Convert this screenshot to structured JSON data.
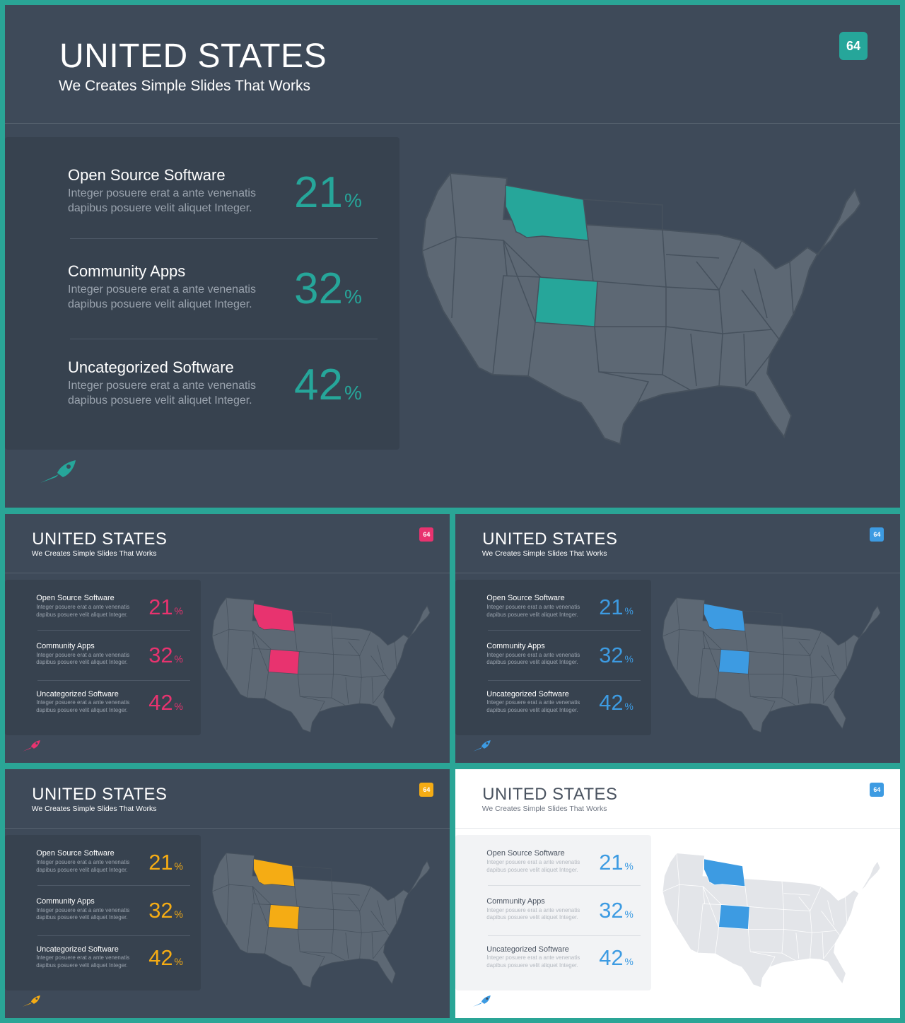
{
  "slides": [
    {
      "id": "main",
      "theme": "dark",
      "title": "UNITED STATES",
      "subtitle": "We Creates Simple Slides That Works",
      "badge": "64",
      "accent": "#26a69a",
      "map_icon": "us-map-icon",
      "highlighted_states": [
        "Montana",
        "Colorado"
      ],
      "stats": [
        {
          "title": "Open Source Software",
          "desc": "Integer posuere erat a ante venenatis dapibus posuere velit aliquet Integer.",
          "value": "21",
          "unit": "%"
        },
        {
          "title": "Community Apps",
          "desc": "Integer posuere erat a ante venenatis dapibus posuere velit aliquet Integer.",
          "value": "32",
          "unit": "%"
        },
        {
          "title": "Uncategorized Software",
          "desc": "Integer posuere erat a ante venenatis dapibus posuere velit aliquet Integer.",
          "value": "42",
          "unit": "%"
        }
      ]
    },
    {
      "id": "pink",
      "theme": "dark",
      "title": "UNITED STATES",
      "subtitle": "We Creates Simple Slides That Works",
      "badge": "64",
      "accent": "#e8336f",
      "map_icon": "us-map-icon",
      "highlighted_states": [
        "Montana",
        "Colorado"
      ],
      "stats": [
        {
          "title": "Open Source Software",
          "desc": "Integer posuere erat a ante venenatis dapibus posuere velit aliquet Integer.",
          "value": "21",
          "unit": "%"
        },
        {
          "title": "Community Apps",
          "desc": "Integer posuere erat a ante venenatis dapibus posuere velit aliquet Integer.",
          "value": "32",
          "unit": "%"
        },
        {
          "title": "Uncategorized Software",
          "desc": "Integer posuere erat a ante venenatis dapibus posuere velit aliquet Integer.",
          "value": "42",
          "unit": "%"
        }
      ]
    },
    {
      "id": "blue",
      "theme": "dark",
      "title": "UNITED STATES",
      "subtitle": "We Creates Simple Slides That Works",
      "badge": "64",
      "accent": "#3d9be2",
      "map_icon": "us-map-icon",
      "highlighted_states": [
        "Montana",
        "Colorado"
      ],
      "stats": [
        {
          "title": "Open Source Software",
          "desc": "Integer posuere erat a ante venenatis dapibus posuere velit aliquet Integer.",
          "value": "21",
          "unit": "%"
        },
        {
          "title": "Community Apps",
          "desc": "Integer posuere erat a ante venenatis dapibus posuere velit aliquet Integer.",
          "value": "32",
          "unit": "%"
        },
        {
          "title": "Uncategorized Software",
          "desc": "Integer posuere erat a ante venenatis dapibus posuere velit aliquet Integer.",
          "value": "42",
          "unit": "%"
        }
      ]
    },
    {
      "id": "orange",
      "theme": "dark",
      "title": "UNITED STATES",
      "subtitle": "We Creates Simple Slides That Works",
      "badge": "64",
      "accent": "#f5ac14",
      "map_icon": "us-map-icon",
      "highlighted_states": [
        "Montana",
        "Colorado"
      ],
      "stats": [
        {
          "title": "Open Source Software",
          "desc": "Integer posuere erat a ante venenatis dapibus posuere velit aliquet Integer.",
          "value": "21",
          "unit": "%"
        },
        {
          "title": "Community Apps",
          "desc": "Integer posuere erat a ante venenatis dapibus posuere velit aliquet Integer.",
          "value": "32",
          "unit": "%"
        },
        {
          "title": "Uncategorized Software",
          "desc": "Integer posuere erat a ante venenatis dapibus posuere velit aliquet Integer.",
          "value": "42",
          "unit": "%"
        }
      ]
    },
    {
      "id": "light",
      "theme": "light",
      "title": "UNITED STATES",
      "subtitle": "We Creates Simple Slides That Works",
      "badge": "64",
      "accent": "#3d9be2",
      "map_icon": "us-map-icon",
      "highlighted_states": [
        "Montana",
        "Colorado"
      ],
      "stats": [
        {
          "title": "Open Source Software",
          "desc": "Integer posuere erat a ante venenatis dapibus posuere velit aliquet Integer.",
          "value": "21",
          "unit": "%"
        },
        {
          "title": "Community Apps",
          "desc": "Integer posuere erat a ante venenatis dapibus posuere velit aliquet Integer.",
          "value": "32",
          "unit": "%"
        },
        {
          "title": "Uncategorized Software",
          "desc": "Integer posuere erat a ante venenatis dapibus posuere velit aliquet Integer.",
          "value": "42",
          "unit": "%"
        }
      ]
    }
  ]
}
